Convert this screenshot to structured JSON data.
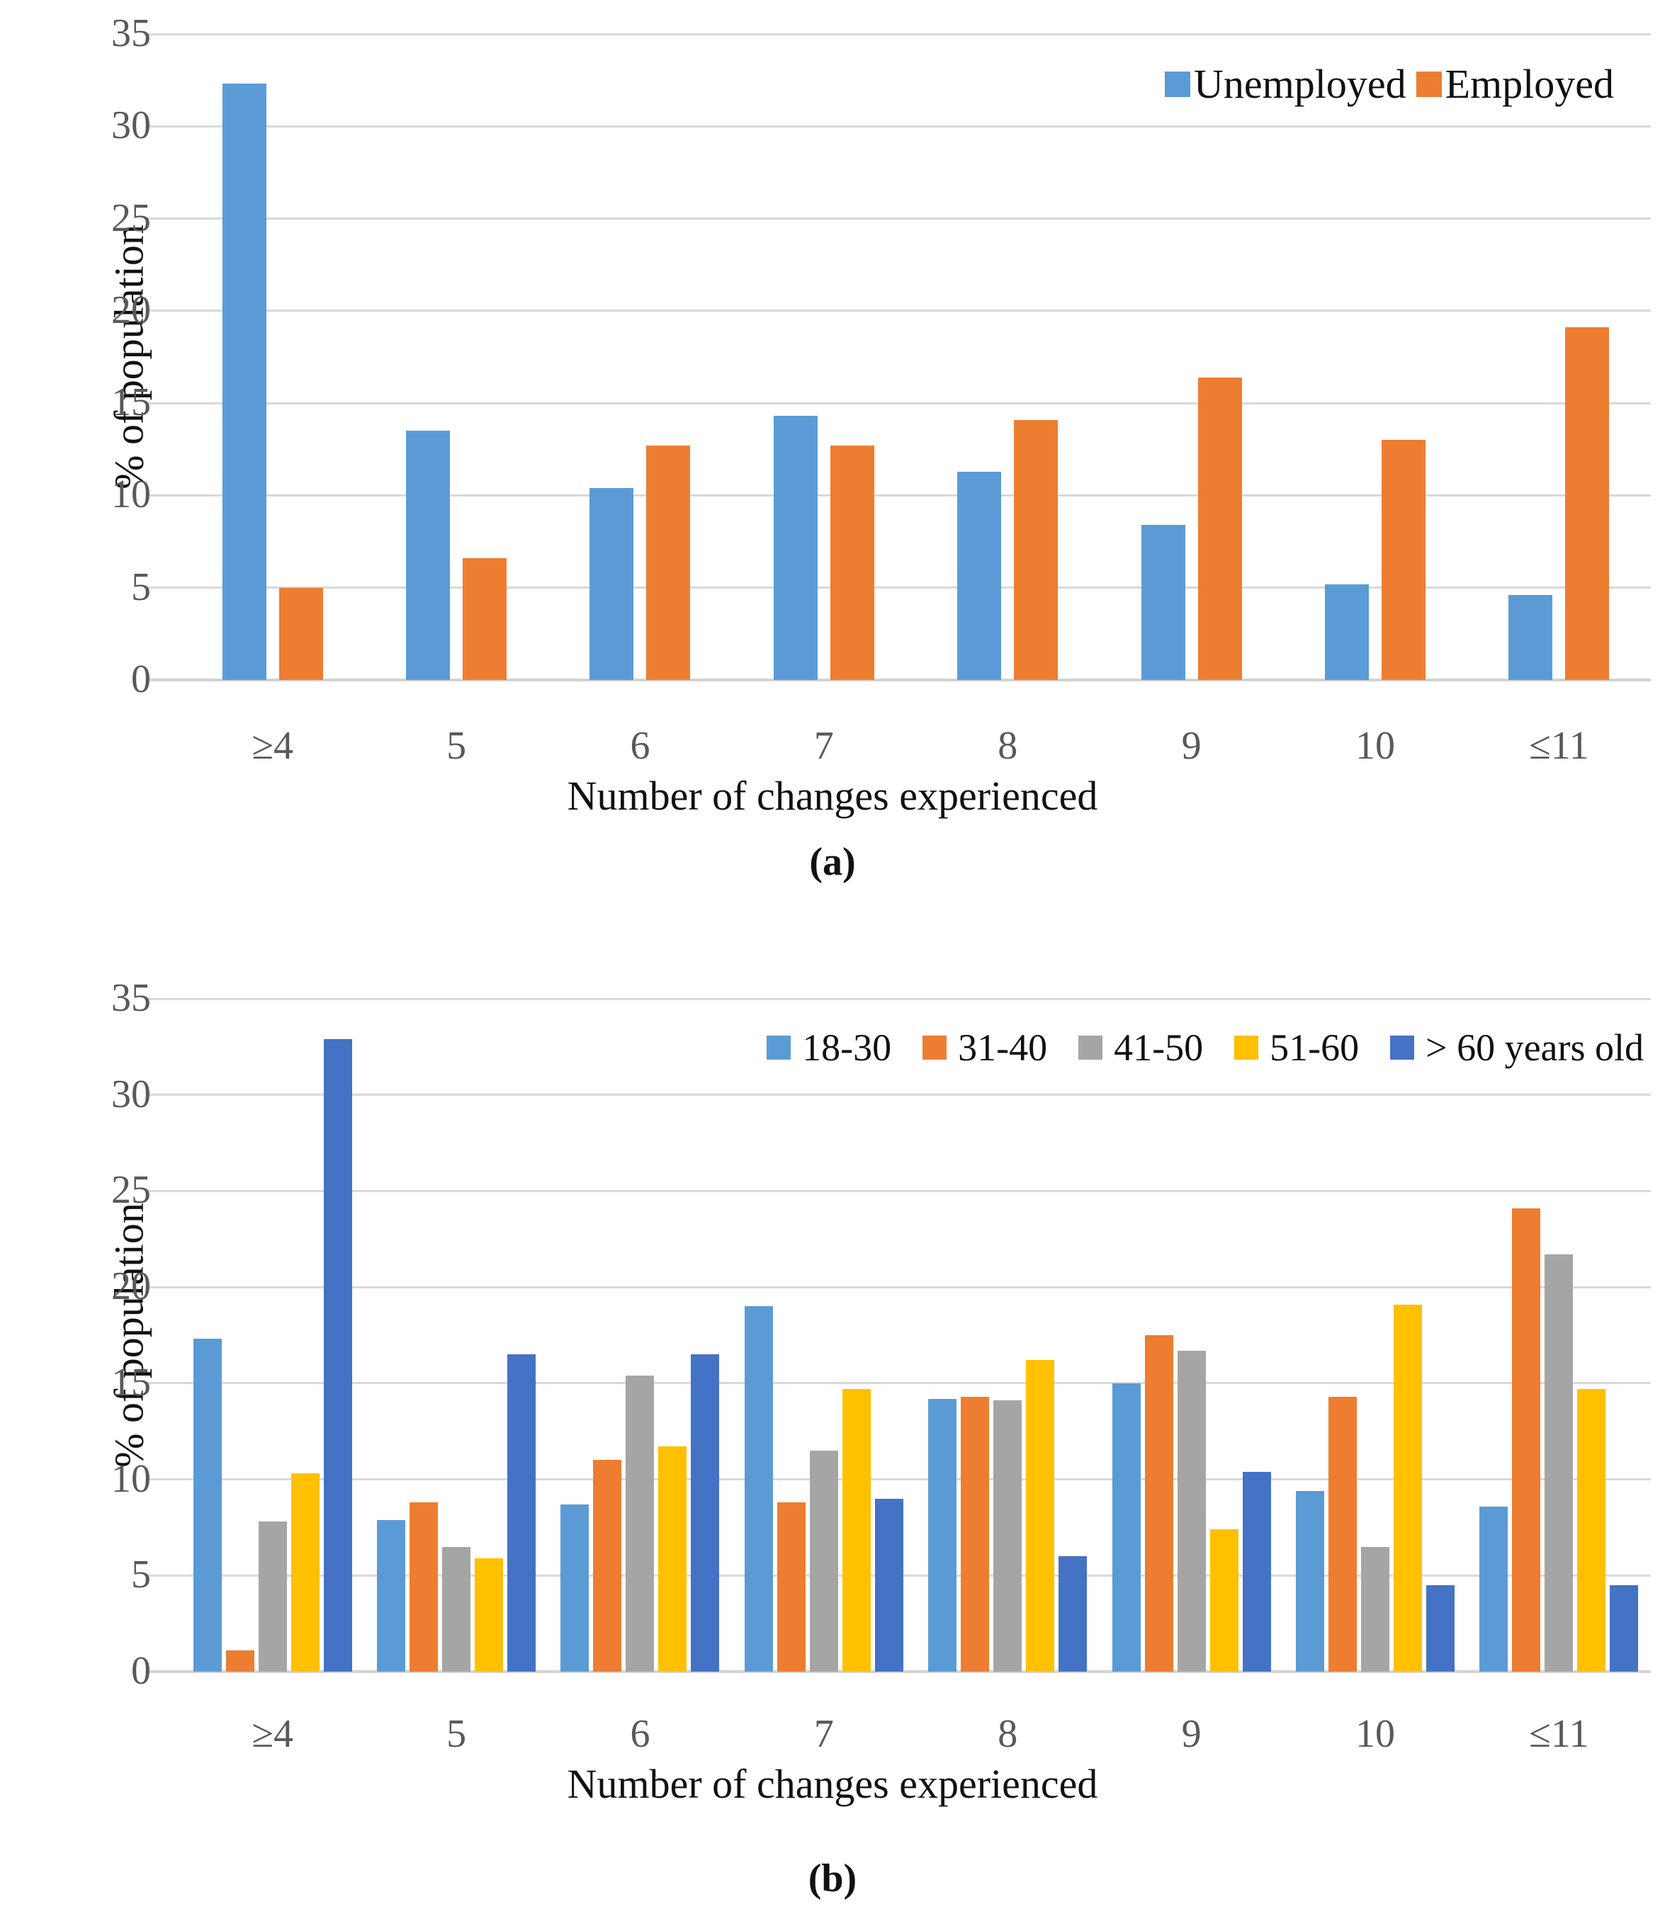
{
  "chart_data": [
    {
      "type": "bar",
      "panel": "a",
      "caption": "(a)",
      "xlabel": "Number of changes experienced",
      "ylabel": "% of population",
      "ylim": [
        0,
        35
      ],
      "ytick_step": 5,
      "yticks": [
        0,
        5,
        10,
        15,
        20,
        25,
        30,
        35
      ],
      "grid": true,
      "legend_position": "top-right-inside",
      "categories": [
        "≥4",
        "5",
        "6",
        "7",
        "8",
        "9",
        "10",
        "≤11"
      ],
      "series": [
        {
          "name": "Unemployed",
          "color": "#5B9BD5",
          "values": [
            32.3,
            13.5,
            10.4,
            14.3,
            11.3,
            8.4,
            5.2,
            4.6
          ]
        },
        {
          "name": "Employed",
          "color": "#ED7D31",
          "values": [
            5.0,
            6.6,
            12.7,
            12.7,
            14.1,
            16.4,
            13.0,
            19.1
          ]
        }
      ]
    },
    {
      "type": "bar",
      "panel": "b",
      "caption": "(b)",
      "xlabel": "Number of changes experienced",
      "ylabel": "% of population",
      "ylim": [
        0,
        35
      ],
      "ytick_step": 5,
      "yticks": [
        0,
        5,
        10,
        15,
        20,
        25,
        30,
        35
      ],
      "grid": true,
      "legend_position": "top-right-inside",
      "categories": [
        "≥4",
        "5",
        "6",
        "7",
        "8",
        "9",
        "10",
        "≤11"
      ],
      "series": [
        {
          "name": "18-30",
          "color": "#5B9BD5",
          "values": [
            17.3,
            7.9,
            8.7,
            19.0,
            14.2,
            15.0,
            9.4,
            8.6
          ]
        },
        {
          "name": "31-40",
          "color": "#ED7D31",
          "values": [
            1.1,
            8.8,
            11.0,
            8.8,
            14.3,
            17.5,
            14.3,
            24.1
          ]
        },
        {
          "name": "41-50",
          "color": "#A5A5A5",
          "values": [
            7.8,
            6.5,
            15.4,
            11.5,
            14.1,
            16.7,
            6.5,
            21.7
          ]
        },
        {
          "name": "51-60",
          "color": "#FFC000",
          "values": [
            10.3,
            5.9,
            11.7,
            14.7,
            16.2,
            7.4,
            19.1,
            14.7
          ]
        },
        {
          "name": "> 60 years old",
          "color": "#4472C4",
          "values": [
            32.9,
            16.5,
            16.5,
            9.0,
            6.0,
            10.4,
            4.5,
            4.5
          ]
        }
      ]
    }
  ],
  "palette": {
    "gridline": "#D9D9D9",
    "tick_text": "#595959",
    "label_text": "#111111"
  }
}
